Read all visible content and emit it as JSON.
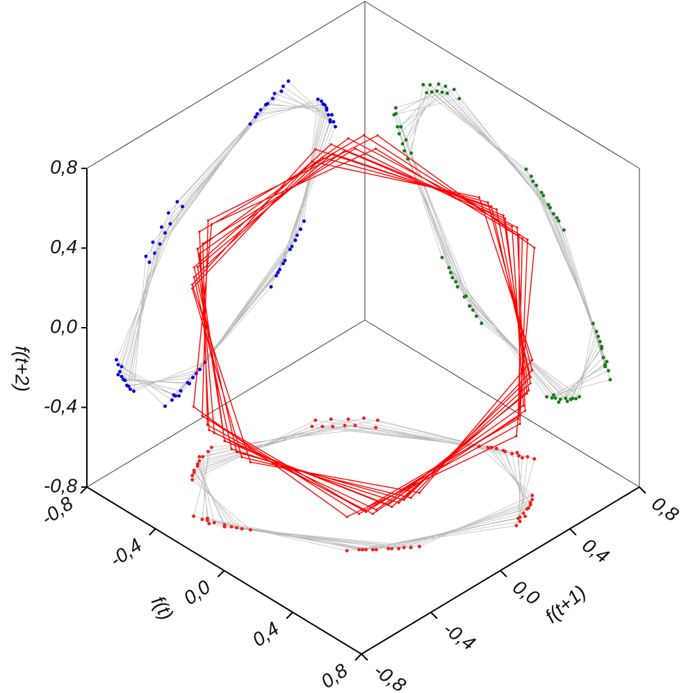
{
  "chart_data": {
    "type": "delay-embedding-3d",
    "x_label": "f(t)",
    "y_label": "f(t+1)",
    "z_label": "f(t+2)",
    "values": [
      0.3,
      0.6,
      0.31,
      -0.29,
      -0.61,
      -0.32,
      0.27,
      0.59,
      0.34,
      -0.26,
      -0.6,
      -0.35,
      0.24,
      0.58,
      0.37,
      -0.22,
      -0.58,
      -0.38,
      0.2,
      0.57,
      0.4,
      -0.19,
      -0.57,
      -0.41,
      0.17,
      0.55,
      0.43,
      -0.15,
      -0.55,
      -0.44,
      0.14,
      0.53,
      0.45,
      -0.12,
      -0.53,
      -0.46,
      0.18,
      0.56,
      0.41,
      -0.17,
      -0.56,
      -0.42,
      0.23,
      0.58,
      0.38,
      -0.21,
      -0.59,
      -0.37,
      0.28,
      0.61,
      0.33,
      -0.27,
      -0.62,
      -0.33,
      0.33,
      0.62,
      0.29,
      -0.31,
      -0.62,
      -0.28,
      0.36,
      0.63,
      0.26,
      -0.35,
      -0.63,
      -0.25,
      0.32,
      0.6,
      0.3,
      -0.3,
      -0.6,
      -0.3
    ],
    "color": "#ff0000",
    "projection_colors": {
      "yz": "#0000dd",
      "xz": "#1a7a1a",
      "xy": "#ee2222"
    },
    "xlim": [
      -0.8,
      0.8
    ],
    "ylim": [
      -0.8,
      0.8
    ],
    "zlim": [
      -0.8,
      0.8
    ],
    "xticks": [
      {
        "value": -0.8,
        "label": "-0,8"
      },
      {
        "value": -0.4,
        "label": "-0,4"
      },
      {
        "value": 0.0,
        "label": "0,0"
      },
      {
        "value": 0.4,
        "label": "0,4"
      },
      {
        "value": 0.8,
        "label": "0,8"
      }
    ],
    "yticks": [
      {
        "value": -0.8,
        "label": "-0,8"
      },
      {
        "value": -0.4,
        "label": "-0,4"
      },
      {
        "value": 0.0,
        "label": "0,0"
      },
      {
        "value": 0.4,
        "label": "0,4"
      },
      {
        "value": 0.8,
        "label": "0,8"
      }
    ],
    "zticks": [
      {
        "value": -0.8,
        "label": "-0,8"
      },
      {
        "value": -0.4,
        "label": "-0,4"
      },
      {
        "value": 0.0,
        "label": "0,0"
      },
      {
        "value": 0.4,
        "label": "0,4"
      },
      {
        "value": 0.8,
        "label": "0,8"
      }
    ]
  }
}
